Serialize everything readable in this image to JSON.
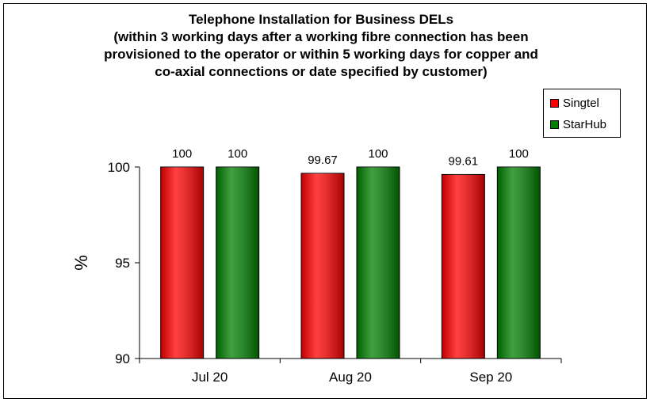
{
  "title": {
    "lines": [
      "Telephone Installation for Business DELs",
      "(within 3 working days after a working fibre connection has been",
      "provisioned to the operator or within 5 working days for copper and",
      "co-axial connections or date specified by customer)"
    ]
  },
  "legend": {
    "items": [
      {
        "label": "Singtel",
        "color": "#ff0000"
      },
      {
        "label": "StarHub",
        "color": "#008000"
      }
    ]
  },
  "chart_data": {
    "type": "bar",
    "title": "Telephone Installation for Business DELs (within 3 working days after a working fibre connection has been provisioned to the operator or within 5 working days for copper and co-axial connections or date specified by customer)",
    "ylabel": "%",
    "xlabel": "",
    "categories": [
      "Jul 20",
      "Aug 20",
      "Sep 20"
    ],
    "series": [
      {
        "name": "Singtel",
        "color": "#ff0000",
        "values": [
          100,
          99.67,
          99.61
        ],
        "labels": [
          "100",
          "99.67",
          "99.61"
        ]
      },
      {
        "name": "StarHub",
        "color": "#008000",
        "values": [
          100,
          100,
          100
        ],
        "labels": [
          "100",
          "100",
          "100"
        ]
      }
    ],
    "ylim": [
      90,
      100
    ],
    "yticks": [
      90,
      95,
      100
    ],
    "ytick_labels": [
      "90",
      "95",
      "100"
    ],
    "grid": false,
    "legend_position": "top-right"
  }
}
